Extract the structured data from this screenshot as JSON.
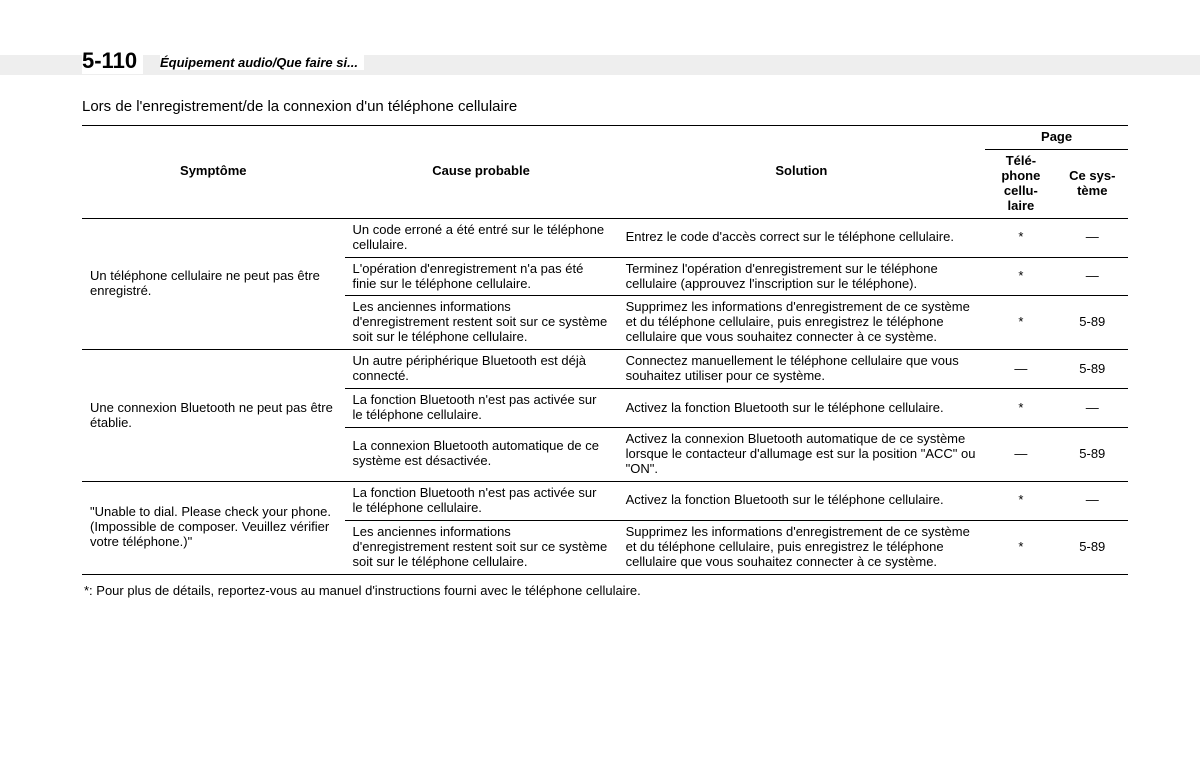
{
  "page_number": "5-110",
  "breadcrumb": "Équipement audio/Que faire si...",
  "section_title": "Lors de l'enregistrement/de la connexion d'un téléphone cellulaire",
  "headers": {
    "symptom": "Symptôme",
    "cause": "Cause probable",
    "solution": "Solution",
    "page": "Page",
    "page_sub1": "Télé-\nphone\ncellu-\nlaire",
    "page_sub2": "Ce sys-\ntème"
  },
  "groups": [
    {
      "symptom": "Un téléphone cellulaire ne peut pas être enregistré.",
      "rows": [
        {
          "cause": "Un code erroné a été entré sur le téléphone cellulaire.",
          "solution": "Entrez le code d'accès correct sur le téléphone cellulaire.",
          "p1": "*",
          "p2": "—"
        },
        {
          "cause": "L'opération d'enregistrement n'a pas été finie sur le téléphone cellulaire.",
          "solution": "Terminez l'opération d'enregistrement sur le téléphone cellulaire (approuvez l'inscription sur le téléphone).",
          "p1": "*",
          "p2": "—"
        },
        {
          "cause": "Les anciennes informations d'enregistrement restent soit sur ce système soit sur le téléphone cellulaire.",
          "solution": "Supprimez les informations d'enregistrement de ce système et du téléphone cellulaire, puis enregistrez le téléphone cellulaire que vous souhaitez connecter à ce système.",
          "p1": "*",
          "p2": "5-89"
        }
      ]
    },
    {
      "symptom": "Une connexion Bluetooth ne peut pas être établie.",
      "rows": [
        {
          "cause": "Un autre périphérique Bluetooth est déjà connecté.",
          "solution": "Connectez manuellement le téléphone cellulaire que vous souhaitez utiliser pour ce système.",
          "p1": "—",
          "p2": "5-89"
        },
        {
          "cause": "La fonction Bluetooth n'est pas activée sur le téléphone cellulaire.",
          "solution": "Activez la fonction Bluetooth sur le téléphone cellulaire.",
          "p1": "*",
          "p2": "—"
        },
        {
          "cause": "La connexion Bluetooth automatique de ce système est désactivée.",
          "solution": "Activez la connexion Bluetooth automatique de ce système lorsque le contacteur d'allumage est sur la position \"ACC\" ou \"ON\".",
          "p1": "—",
          "p2": "5-89"
        }
      ]
    },
    {
      "symptom": "\"Unable to dial. Please check your phone. (Impossible de composer. Veuillez vérifier votre téléphone.)\"",
      "rows": [
        {
          "cause": "La fonction Bluetooth n'est pas activée sur le téléphone cellulaire.",
          "solution": "Activez la fonction Bluetooth sur le téléphone cellulaire.",
          "p1": "*",
          "p2": "—"
        },
        {
          "cause": "Les anciennes informations d'enregistrement restent soit sur ce système soit sur le téléphone cellulaire.",
          "solution": "Supprimez les informations d'enregistrement de ce système et du téléphone cellulaire, puis enregistrez le téléphone cellulaire que vous souhaitez connecter à ce système.",
          "p1": "*",
          "p2": "5-89"
        }
      ]
    }
  ],
  "footnote": "*: Pour plus de détails, reportez-vous au manuel d'instructions fourni avec le téléphone cellulaire."
}
